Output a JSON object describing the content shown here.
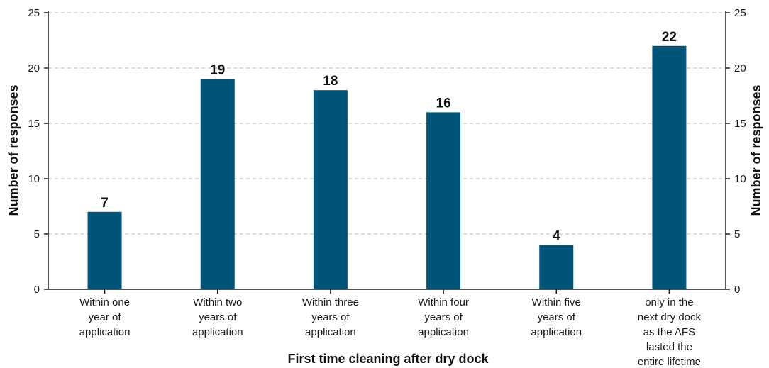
{
  "chart_data": {
    "type": "bar",
    "categories": [
      [
        "Within one",
        "year of",
        "application"
      ],
      [
        "Within two",
        "years of",
        "application"
      ],
      [
        "Within three",
        "years of",
        "application"
      ],
      [
        "Within four",
        "years of",
        "application"
      ],
      [
        "Within five",
        "years of",
        "application"
      ],
      [
        "only in the",
        "next dry dock",
        "as the AFS",
        "lasted the",
        "entire lifetime"
      ]
    ],
    "values": [
      7,
      19,
      18,
      16,
      4,
      22
    ],
    "xlabel": "First time cleaning after dry dock",
    "ylabel": "Number of responses",
    "ylabel_right": "Number of responses",
    "ylim": [
      0,
      25
    ],
    "yticks": [
      0,
      5,
      10,
      15,
      20,
      25
    ],
    "grid": true,
    "bar_color": "#005478",
    "grid_color": "#c8c8c8",
    "axis_color": "#1a1a1a"
  }
}
